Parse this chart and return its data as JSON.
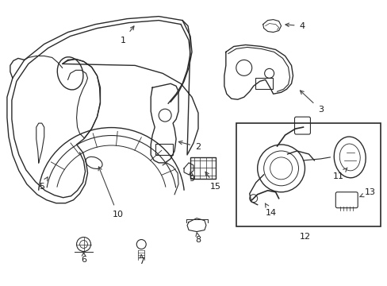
{
  "background_color": "#ffffff",
  "line_color": "#2a2a2a",
  "label_color": "#1a1a1a",
  "arrow_color": "#555555",
  "fig_width": 4.89,
  "fig_height": 3.6,
  "dpi": 100
}
